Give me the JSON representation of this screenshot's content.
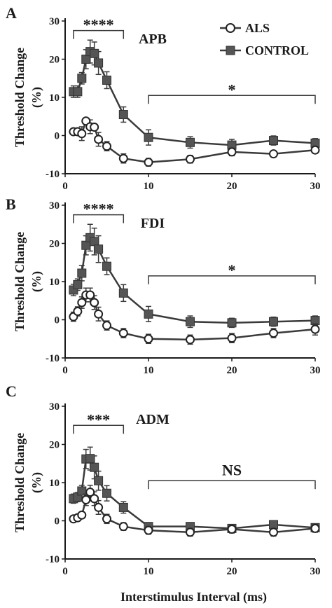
{
  "chart_data": [
    {
      "type": "line",
      "panel": "A",
      "title": "APB",
      "ylabel": "Threshold Change (%)",
      "xlim": [
        0,
        30
      ],
      "ylim": [
        -10,
        30
      ],
      "xticks": [
        0,
        10,
        20,
        30
      ],
      "yticks": [
        -10,
        0,
        10,
        20,
        30
      ],
      "legend": {
        "position": "top-right",
        "entries": [
          "ALS",
          "CONTROL"
        ]
      },
      "series": [
        {
          "name": "ALS",
          "marker": "open-circle",
          "x": [
            1,
            1.5,
            2,
            2.5,
            3,
            3.5,
            4,
            5,
            7,
            10,
            15,
            20,
            25,
            30
          ],
          "y": [
            1,
            1,
            0.5,
            3.8,
            2.3,
            2.2,
            -1,
            -2.8,
            -6,
            -7,
            -6.2,
            -4.3,
            -4.8,
            -3.8
          ],
          "err": [
            0,
            0,
            1.8,
            0,
            1.8,
            0,
            1.8,
            1.2,
            1.2,
            1,
            1,
            1,
            0.8,
            0.8
          ]
        },
        {
          "name": "CONTROL",
          "marker": "filled-square",
          "x": [
            1,
            1.5,
            2,
            2.5,
            3,
            3.5,
            4,
            5,
            7,
            10,
            15,
            20,
            25,
            30
          ],
          "y": [
            11.5,
            11.5,
            15,
            20,
            22,
            21.5,
            19,
            14.5,
            5.5,
            -0.5,
            -1.8,
            -2.5,
            -1.3,
            -2
          ],
          "err": [
            1.5,
            1.5,
            1.5,
            2.5,
            3,
            3,
            3,
            2.2,
            2,
            2,
            1.5,
            1.5,
            1.2,
            1.2
          ]
        }
      ],
      "brackets": [
        {
          "x1": 1,
          "x2": 7,
          "y": 27.5,
          "label": "****"
        },
        {
          "x1": 10,
          "x2": 30,
          "y": 10.5,
          "label": "*"
        }
      ]
    },
    {
      "type": "line",
      "panel": "B",
      "title": "FDI",
      "ylabel": "Threshold Change (%)",
      "xlim": [
        0,
        30
      ],
      "ylim": [
        -10,
        30
      ],
      "xticks": [
        0,
        10,
        20,
        30
      ],
      "yticks": [
        -10,
        0,
        10,
        20,
        30
      ],
      "series": [
        {
          "name": "ALS",
          "marker": "open-circle",
          "x": [
            1,
            1.5,
            2,
            2.5,
            3,
            3.5,
            4,
            5,
            7,
            10,
            15,
            20,
            25,
            30
          ],
          "y": [
            0.8,
            2.2,
            4.5,
            6.5,
            6.5,
            4.5,
            1.5,
            -1.5,
            -3.5,
            -5,
            -5.2,
            -4.8,
            -3.5,
            -2.5
          ],
          "err": [
            1.2,
            1.2,
            1.5,
            1.8,
            1.8,
            1.8,
            1.8,
            1.2,
            1.2,
            1.2,
            1.2,
            1.2,
            1.2,
            1.5
          ]
        },
        {
          "name": "CONTROL",
          "marker": "filled-square",
          "x": [
            1,
            1.5,
            2,
            2.5,
            3,
            3.5,
            4,
            5,
            7,
            10,
            15,
            20,
            25,
            30
          ],
          "y": [
            7.8,
            9.2,
            12.2,
            19.5,
            21.5,
            20.5,
            18.5,
            14,
            7,
            1.5,
            -0.5,
            -0.8,
            -0.5,
            -0.2
          ],
          "err": [
            1.5,
            1.5,
            2,
            2.5,
            3.5,
            3.5,
            3.5,
            2.2,
            2.2,
            2,
            1.5,
            1.2,
            1.2,
            1.2
          ]
        }
      ],
      "brackets": [
        {
          "x1": 1,
          "x2": 7,
          "y": 27.5,
          "label": "****"
        },
        {
          "x1": 10,
          "x2": 30,
          "y": 11.5,
          "label": "*"
        }
      ]
    },
    {
      "type": "line",
      "panel": "C",
      "title": "ADM",
      "ylabel": "Threshold Change (%)",
      "xlabel": "Interstimulus Interval (ms)",
      "xlim": [
        0,
        30
      ],
      "ylim": [
        -10,
        30
      ],
      "xticks": [
        0,
        10,
        20,
        30
      ],
      "yticks": [
        -10,
        0,
        10,
        20,
        30
      ],
      "series": [
        {
          "name": "ALS",
          "marker": "open-circle",
          "x": [
            1,
            1.5,
            2,
            2.5,
            3,
            3.5,
            4,
            5,
            7,
            10,
            15,
            20,
            25,
            30
          ],
          "y": [
            0.5,
            0.8,
            1.5,
            5.5,
            7.5,
            5.8,
            3.5,
            0.5,
            -1.5,
            -2.5,
            -3,
            -2.2,
            -3,
            -2
          ],
          "err": [
            0,
            0,
            0,
            1.5,
            1.8,
            1.8,
            1.8,
            1.2,
            1,
            1,
            1,
            1,
            1,
            1
          ]
        },
        {
          "name": "CONTROL",
          "marker": "filled-square",
          "x": [
            1,
            1.5,
            2,
            2.5,
            3,
            3.5,
            4,
            5,
            7,
            10,
            15,
            20,
            25,
            30
          ],
          "y": [
            5.8,
            6.2,
            7.8,
            16.2,
            16.3,
            14,
            10.5,
            7.2,
            3.5,
            -1.5,
            -1.5,
            -2,
            -1,
            -1.8
          ],
          "err": [
            1.2,
            1.2,
            1.5,
            2.5,
            3,
            3,
            2.5,
            2,
            1.5,
            1,
            1,
            1,
            1,
            1
          ]
        }
      ],
      "brackets": [
        {
          "x1": 1,
          "x2": 7,
          "y": 25,
          "label": "***"
        },
        {
          "x1": 10,
          "x2": 30,
          "y": 10.5,
          "label": "NS"
        }
      ]
    }
  ]
}
